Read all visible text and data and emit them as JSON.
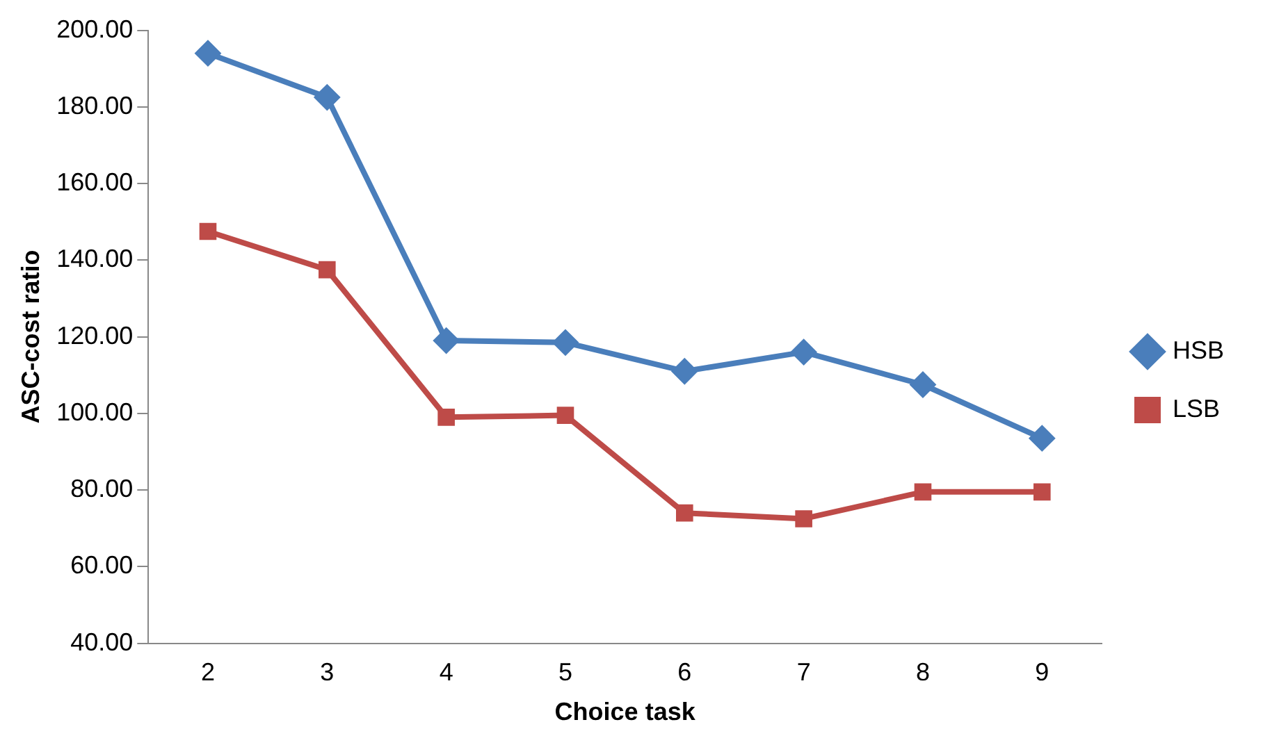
{
  "chart_data": {
    "type": "line",
    "xlabel": "Choice task",
    "ylabel": "ASC-cost ratio",
    "categories": [
      "2",
      "3",
      "4",
      "5",
      "6",
      "7",
      "8",
      "9"
    ],
    "series": [
      {
        "name": "HSB",
        "color": "#4a7ebb",
        "marker": "diamond",
        "values": [
          194,
          182.5,
          119,
          118.5,
          111,
          116,
          107.5,
          93.5
        ]
      },
      {
        "name": "LSB",
        "color": "#be4b48",
        "marker": "square",
        "values": [
          147.5,
          137.5,
          99,
          99.5,
          74,
          72.5,
          79.5,
          79.5
        ]
      }
    ],
    "ylim": [
      40,
      200
    ],
    "yticks": [
      {
        "value": 40,
        "label": "40.00"
      },
      {
        "value": 60,
        "label": "60.00"
      },
      {
        "value": 80,
        "label": "80.00"
      },
      {
        "value": 100,
        "label": "100.00"
      },
      {
        "value": 120,
        "label": "120.00"
      },
      {
        "value": 140,
        "label": "140.00"
      },
      {
        "value": 160,
        "label": "160.00"
      },
      {
        "value": 180,
        "label": "180.00"
      },
      {
        "value": 200,
        "label": "200.00"
      }
    ],
    "grid": false,
    "legend": "right",
    "line_style": "solid"
  }
}
